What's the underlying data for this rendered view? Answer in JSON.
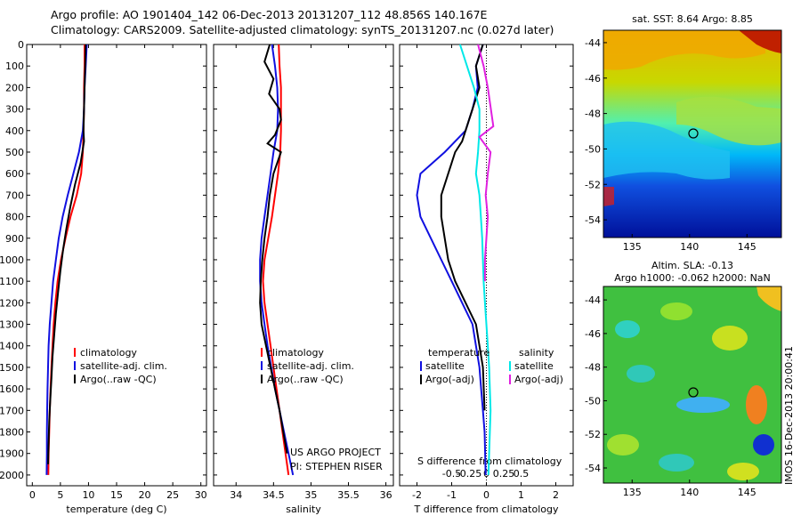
{
  "header": {
    "line1": "Argo profile: AO 1901404_142 06-Dec-2013 20131207_112 48.856S 140.167E",
    "line2": "Climatology: CARS2009. Satellite-adjusted climatology: synTS_20131207.nc (0.027d later)"
  },
  "colors": {
    "climatology": "#ff0000",
    "satellite": "#1010e0",
    "argo": "#000000",
    "sat_salinity": "#00e8e8",
    "argo_salinity": "#e020e0"
  },
  "credits": {
    "project": "US ARGO PROJECT",
    "pi": "PI: STEPHEN RISER"
  },
  "stamp": "IMOS 16-Dec-2013 20:00:41",
  "chart_data": [
    {
      "id": "temperature",
      "type": "line",
      "xlabel": "temperature (deg C)",
      "ylim": [
        2050,
        0
      ],
      "xlim": [
        -1,
        31
      ],
      "xticks": [
        0,
        5,
        10,
        15,
        20,
        25,
        30
      ],
      "yticks": [
        0,
        100,
        200,
        300,
        400,
        500,
        600,
        700,
        800,
        900,
        1000,
        1100,
        1200,
        1300,
        1400,
        1500,
        1600,
        1700,
        1800,
        1900,
        2000
      ],
      "legend": [
        "climatology",
        "satellite-adj. clim.",
        "Argo(..raw -QC)"
      ],
      "series": [
        {
          "name": "climatology",
          "color": "#ff0000",
          "x": [
            9.3,
            9.3,
            9.2,
            9.2,
            9.1,
            9.0,
            8.7,
            7.9,
            6.8,
            5.9,
            5.1,
            4.5,
            4.1,
            3.8,
            3.6,
            3.4,
            3.25,
            3.1,
            3.0,
            2.9,
            2.85
          ],
          "y": [
            0,
            100,
            200,
            300,
            400,
            500,
            600,
            700,
            800,
            900,
            1000,
            1100,
            1200,
            1300,
            1400,
            1500,
            1600,
            1700,
            1800,
            1900,
            2000
          ]
        },
        {
          "name": "satellite-adj. clim.",
          "color": "#1010e0",
          "x": [
            9.7,
            9.5,
            9.3,
            9.2,
            9.0,
            8.3,
            7.3,
            6.3,
            5.4,
            4.7,
            4.2,
            3.7,
            3.4,
            3.1,
            2.9,
            2.8,
            2.7,
            2.65,
            2.6,
            2.6,
            2.55
          ],
          "y": [
            0,
            100,
            200,
            300,
            400,
            500,
            600,
            700,
            800,
            900,
            1000,
            1100,
            1200,
            1300,
            1400,
            1500,
            1600,
            1700,
            1800,
            1900,
            2000
          ]
        },
        {
          "name": "Argo(..raw -QC)",
          "color": "#000000",
          "x": [
            9.5,
            9.4,
            9.3,
            9.2,
            9.1,
            9.2,
            8.6,
            7.6,
            6.8,
            6.1,
            5.5,
            5.0,
            4.6,
            4.2,
            3.9,
            3.6,
            3.4,
            3.2,
            3.0,
            2.9,
            2.8
          ],
          "y": [
            0,
            100,
            200,
            300,
            400,
            450,
            550,
            650,
            750,
            850,
            950,
            1050,
            1150,
            1250,
            1350,
            1450,
            1550,
            1650,
            1750,
            1850,
            1950
          ]
        }
      ]
    },
    {
      "id": "salinity",
      "type": "line",
      "xlabel": "salinity",
      "ylim": [
        2050,
        0
      ],
      "xlim": [
        33.7,
        36.1
      ],
      "xticks": [
        34,
        34.5,
        35,
        35.5,
        36
      ],
      "legend": [
        "climatology",
        "satellite-adj. clim.",
        "Argo(..raw -QC)"
      ],
      "series": [
        {
          "name": "climatology",
          "color": "#ff0000",
          "x": [
            34.57,
            34.58,
            34.6,
            34.6,
            34.6,
            34.59,
            34.56,
            34.52,
            34.48,
            34.43,
            34.38,
            34.36,
            34.38,
            34.42,
            34.46,
            34.5,
            34.54,
            34.58,
            34.62,
            34.66,
            34.7
          ],
          "y": [
            0,
            100,
            200,
            300,
            400,
            500,
            600,
            700,
            800,
            900,
            1000,
            1100,
            1200,
            1300,
            1400,
            1500,
            1600,
            1700,
            1800,
            1900,
            2000
          ]
        },
        {
          "name": "satellite-adj. clim.",
          "color": "#1010e0",
          "x": [
            34.48,
            34.52,
            34.55,
            34.56,
            34.55,
            34.5,
            34.46,
            34.42,
            34.38,
            34.34,
            34.32,
            34.32,
            34.34,
            34.38,
            34.42,
            34.47,
            34.52,
            34.58,
            34.64,
            34.7,
            34.76
          ],
          "y": [
            0,
            100,
            200,
            300,
            400,
            500,
            600,
            700,
            800,
            900,
            1000,
            1100,
            1200,
            1300,
            1400,
            1500,
            1600,
            1700,
            1800,
            1900,
            2000
          ]
        },
        {
          "name": "Argo(..raw -QC)",
          "color": "#000000",
          "x": [
            34.45,
            34.38,
            34.5,
            34.44,
            34.58,
            34.6,
            34.52,
            34.42,
            34.6,
            34.5,
            34.45,
            34.42,
            34.38,
            34.35,
            34.33,
            34.32,
            34.34,
            34.4,
            34.46,
            34.52,
            34.58,
            34.63,
            34.68
          ],
          "y": [
            0,
            80,
            160,
            230,
            300,
            350,
            420,
            460,
            500,
            600,
            700,
            800,
            900,
            1000,
            1100,
            1200,
            1300,
            1400,
            1500,
            1600,
            1700,
            1800,
            1900
          ]
        }
      ]
    },
    {
      "id": "difference",
      "type": "line",
      "xlabel": "T difference from climatology",
      "top_xlabel": "S difference from climatology",
      "ylim": [
        2050,
        0
      ],
      "xlim": [
        -2.5,
        2.5
      ],
      "xticks": [
        -2,
        -1,
        0,
        1,
        2
      ],
      "top_xticks": [
        "-0.5",
        "-0.25",
        "0",
        "0.25",
        "0.5"
      ],
      "legend_titles": [
        "temperature",
        "salinity"
      ],
      "legend": [
        "satellite",
        "Argo(-adj)",
        "satellite",
        "Argo(-adj)"
      ],
      "series": [
        {
          "name": "temperature satellite",
          "color": "#1010e0",
          "x": [
            -0.1,
            -0.3,
            -0.25,
            -0.4,
            -0.6,
            -1.2,
            -1.9,
            -2.0,
            -1.9,
            -1.6,
            -1.3,
            -1.0,
            -0.7,
            -0.4,
            -0.3,
            -0.2,
            -0.15,
            -0.1,
            -0.05,
            -0.02
          ],
          "y": [
            0,
            100,
            200,
            300,
            400,
            500,
            600,
            700,
            800,
            900,
            1000,
            1100,
            1200,
            1300,
            1400,
            1500,
            1600,
            1700,
            1800,
            2000
          ]
        },
        {
          "name": "temperature Argo(-adj)",
          "color": "#000000",
          "x": [
            -0.1,
            -0.3,
            -0.2,
            -0.4,
            -0.7,
            -0.9,
            -1.1,
            -1.3,
            -1.3,
            -1.2,
            -1.1,
            -0.9,
            -0.6,
            -0.3,
            -0.2,
            -0.1,
            -0.05
          ],
          "y": [
            0,
            100,
            200,
            300,
            450,
            500,
            600,
            700,
            800,
            900,
            1000,
            1100,
            1200,
            1300,
            1400,
            1500,
            1700
          ]
        },
        {
          "name": "salinity satellite",
          "color": "#00e8e8",
          "x": [
            -0.38,
            -0.28,
            -0.18,
            -0.1,
            -0.1,
            -0.12,
            -0.15,
            -0.1,
            -0.08,
            -0.06,
            -0.05,
            -0.04,
            -0.02,
            0.0,
            0.02,
            0.04,
            0.05,
            0.06,
            0.04,
            0.03
          ],
          "y": [
            0,
            100,
            200,
            300,
            400,
            500,
            600,
            700,
            800,
            900,
            1000,
            1100,
            1200,
            1300,
            1400,
            1500,
            1600,
            1700,
            1900,
            2000
          ]
        },
        {
          "name": "salinity Argo(-adj)",
          "color": "#e020e0",
          "x": [
            -0.12,
            -0.04,
            0.02,
            0.1,
            -0.1,
            0.06,
            0.02,
            -0.01,
            0.02,
            0.0,
            -0.02,
            -0.02
          ],
          "y": [
            0,
            100,
            200,
            380,
            430,
            500,
            600,
            700,
            800,
            900,
            1000,
            1100
          ]
        }
      ]
    },
    {
      "id": "sst-map",
      "type": "heatmap",
      "title": "sat. SST: 8.64 Argo: 8.85",
      "xticks": [
        135,
        140,
        145
      ],
      "yticks": [
        -44,
        -46,
        -48,
        -50,
        -52,
        -54
      ],
      "marker": {
        "lon": 140.167,
        "lat": -48.856
      }
    },
    {
      "id": "sla-map",
      "type": "heatmap",
      "title": "Altim. SLA: -0.13",
      "subtitle": "Argo h1000: -0.062 h2000: NaN",
      "xticks": [
        135,
        140,
        145
      ],
      "yticks": [
        -44,
        -46,
        -48,
        -50,
        -52,
        -54
      ],
      "marker": {
        "lon": 140.167,
        "lat": -48.856
      }
    }
  ]
}
